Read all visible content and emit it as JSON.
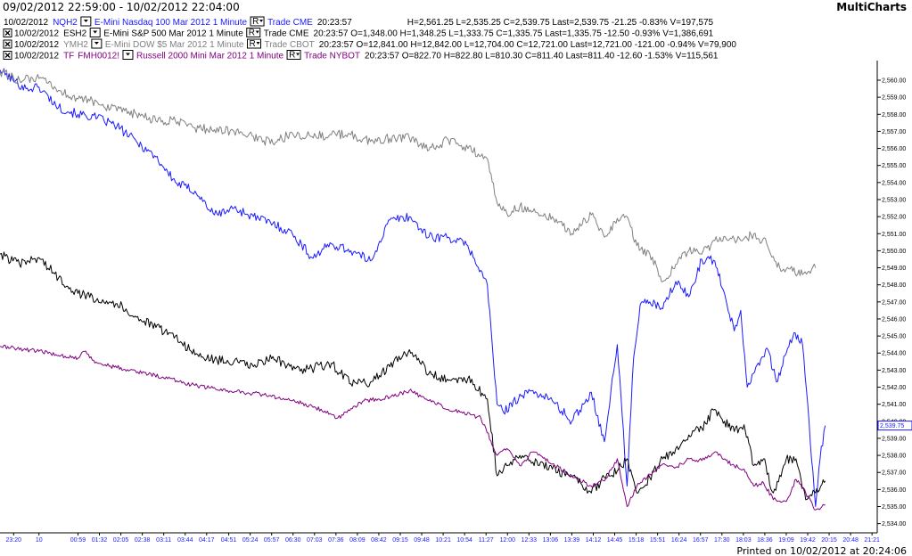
{
  "window": {
    "title": "09/02/2012 22:59:00 - 10/02/2012 22:04:00",
    "app_name": "MultiCharts"
  },
  "footer": {
    "printed": "Printed on 10/02/2012 at 20:24:06"
  },
  "colors": {
    "nasdaq": "#1a1aff",
    "sp500": "#000000",
    "dow": "#808080",
    "russell": "#800080",
    "last_price_box": "#1a1aff"
  },
  "instruments": [
    {
      "id": "nasdaq",
      "color": "#1a1aff",
      "close_icon": false,
      "date": "10/02/2012",
      "symbol": "NQH2",
      "description": "E-Mini Nasdaq 100 Mar 2012",
      "resolution": "1 Minute",
      "data_type": "Trade",
      "exchange": "CME",
      "time": "20:23:57",
      "open": "",
      "high": "H=2,561.25",
      "low": "L=2,535.25",
      "close": "C=2,539.75",
      "last": "Last=2,539.75",
      "change": "-21.25",
      "change_pct": "-0.83%",
      "volume": "V=197,575"
    },
    {
      "id": "sp500",
      "color": "#000000",
      "close_icon": true,
      "date": "10/02/2012",
      "symbol": "ESH2",
      "description": "E-Mini S&P 500 Mar 2012",
      "resolution": "1 Minute",
      "data_type": "Trade",
      "exchange": "CME",
      "time": "20:23:57",
      "open": "O=1,348.00",
      "high": "H=1,348.25",
      "low": "L=1,333.75",
      "close": "C=1,335.75",
      "last": "Last=1,335.75",
      "change": "-12.50",
      "change_pct": "-0.93%",
      "volume": "V=1,386,691"
    },
    {
      "id": "dow",
      "color": "#808080",
      "close_icon": true,
      "date": "10/02/2012",
      "symbol": "YMH2",
      "description": "E-Mini DOW $5 Mar 2012",
      "resolution": "1 Minute",
      "data_type": "Trade",
      "exchange": "CBOT",
      "time": "20:23:57",
      "open": "O=12,841.00",
      "high": "H=12,842.00",
      "low": "L=12,704.00",
      "close": "C=12,721.00",
      "last": "Last=12,721.00",
      "change": "-121.00",
      "change_pct": "-0.94%",
      "volume": "V=79,900"
    },
    {
      "id": "russell",
      "color": "#800080",
      "close_icon": true,
      "date": "10/02/2012",
      "symbol": "TF",
      "alt_symbol": "FMH0012!",
      "description": "Russell 2000 Mini Mar 2012",
      "resolution": "1 Minute",
      "data_type": "Trade",
      "exchange": "NYBOT",
      "time": "20:23:57",
      "open": "O=822.70",
      "high": "H=822.80",
      "low": "L=810.30",
      "close": "C=811.40",
      "last": "Last=811.40",
      "change": "-12.60",
      "change_pct": "-1.53%",
      "volume": "V=115,561"
    }
  ],
  "chart_data": {
    "type": "line",
    "title": "",
    "xlabel": "",
    "ylabel": "",
    "grid": false,
    "legend": "top-left",
    "ylim": [
      2533.8,
      2561.0
    ],
    "y_ticks": [
      "2,560.00",
      "2,559.00",
      "2,558.00",
      "2,557.00",
      "2,556.00",
      "2,555.00",
      "2,554.00",
      "2,553.00",
      "2,552.00",
      "2,551.00",
      "2,550.00",
      "2,549.00",
      "2,548.00",
      "2,547.00",
      "2,546.00",
      "2,545.00",
      "2,544.00",
      "2,543.00",
      "2,542.00",
      "2,541.00",
      "2,540.00",
      "2,539.00",
      "2,538.00",
      "2,537.00",
      "2,536.00",
      "2,535.00",
      "2,534.00"
    ],
    "last_price_label": "2,539.75",
    "last_price_value": 2539.75,
    "x_tick_labels": [
      "23:20",
      "10",
      "00:59",
      "01:32",
      "02:05",
      "02:38",
      "03:11",
      "03:44",
      "04:17",
      "04:51",
      "05:24",
      "05:57",
      "06:30",
      "07:03",
      "07:36",
      "08:09",
      "08:42",
      "09:15",
      "09:48",
      "10:21",
      "10:54",
      "11:27",
      "12:00",
      "12:33",
      "13:06",
      "13:39",
      "14:12",
      "14:45",
      "15:18",
      "15:51",
      "16:24",
      "16:57",
      "17:30",
      "18:03",
      "18:36",
      "19:09",
      "19:42",
      "20:15",
      "20:48",
      "21:21"
    ],
    "x_tick_minutes": [
      21,
      60,
      120,
      153,
      186,
      219,
      252,
      285,
      318,
      352,
      385,
      418,
      451,
      484,
      517,
      550,
      583,
      616,
      649,
      682,
      715,
      748,
      781,
      814,
      847,
      880,
      913,
      946,
      979,
      1012,
      1045,
      1078,
      1111,
      1144,
      1177,
      1210,
      1243,
      1276,
      1309,
      1342
    ],
    "x_range": [
      0,
      1350
    ],
    "series": [
      {
        "name": "E-Mini Nasdaq 100 Mar 2012",
        "color": "#1a1aff",
        "x": [
          0,
          20,
          40,
          60,
          90,
          120,
          150,
          180,
          210,
          240,
          270,
          300,
          330,
          360,
          390,
          420,
          450,
          480,
          510,
          540,
          570,
          600,
          630,
          660,
          690,
          720,
          750,
          765,
          775,
          790,
          820,
          850,
          880,
          910,
          930,
          950,
          965,
          975,
          985,
          1000,
          1020,
          1040,
          1060,
          1080,
          1100,
          1115,
          1130,
          1140,
          1150,
          1165,
          1180,
          1195,
          1210,
          1222,
          1235,
          1245,
          1255,
          1262,
          1270
        ],
        "y": [
          2560.6,
          2560.0,
          2559.5,
          2559.6,
          2558.4,
          2558.0,
          2557.8,
          2557.3,
          2556.4,
          2555.5,
          2554.0,
          2553.5,
          2552.1,
          2552.5,
          2552.0,
          2551.6,
          2551.0,
          2549.6,
          2550.4,
          2550.0,
          2549.4,
          2551.8,
          2552.0,
          2550.8,
          2550.8,
          2550.3,
          2548.0,
          2541.0,
          2540.5,
          2541.2,
          2541.8,
          2541.2,
          2540.0,
          2541.7,
          2538.8,
          2544.5,
          2536.2,
          2543.7,
          2546.8,
          2547.0,
          2546.6,
          2548.2,
          2547.3,
          2549.5,
          2549.4,
          2547.5,
          2545.3,
          2546.5,
          2542.0,
          2543.3,
          2544.3,
          2542.3,
          2544.0,
          2545.2,
          2544.5,
          2540.0,
          2535.0,
          2537.8,
          2539.75
        ]
      },
      {
        "name": "E-Mini S&P 500 Mar 2012",
        "color": "#000000",
        "x": [
          0,
          30,
          60,
          90,
          120,
          150,
          180,
          210,
          240,
          270,
          300,
          330,
          360,
          390,
          420,
          450,
          480,
          510,
          540,
          570,
          600,
          630,
          660,
          690,
          720,
          750,
          765,
          780,
          800,
          820,
          850,
          880,
          910,
          930,
          950,
          965,
          980,
          1000,
          1020,
          1040,
          1060,
          1080,
          1100,
          1115,
          1130,
          1145,
          1160,
          1175,
          1190,
          1210,
          1225,
          1240,
          1255,
          1265,
          1270
        ],
        "y": [
          2549.8,
          2549.2,
          2549.6,
          2548.4,
          2547.5,
          2547.2,
          2546.9,
          2546.1,
          2545.5,
          2545.0,
          2543.9,
          2543.6,
          2543.5,
          2543.2,
          2543.8,
          2543.0,
          2543.1,
          2543.4,
          2542.2,
          2542.3,
          2543.2,
          2544.2,
          2542.8,
          2542.4,
          2542.5,
          2541.3,
          2536.8,
          2537.4,
          2538.0,
          2537.6,
          2537.2,
          2536.8,
          2535.8,
          2536.7,
          2537.1,
          2537.8,
          2535.8,
          2536.7,
          2537.8,
          2538.4,
          2539.2,
          2539.6,
          2540.7,
          2540.0,
          2539.4,
          2539.8,
          2537.4,
          2537.8,
          2535.8,
          2537.8,
          2537.8,
          2535.4,
          2535.8,
          2536.3,
          2536.5
        ]
      },
      {
        "name": "E-Mini DOW $5 Mar 2012",
        "color": "#808080",
        "x": [
          0,
          30,
          60,
          90,
          120,
          150,
          180,
          210,
          240,
          270,
          300,
          330,
          360,
          390,
          420,
          450,
          480,
          510,
          540,
          570,
          600,
          630,
          660,
          690,
          720,
          750,
          765,
          780,
          800,
          820,
          850,
          880,
          910,
          930,
          950,
          965,
          980,
          1000,
          1020,
          1040,
          1060,
          1080,
          1100,
          1120,
          1140,
          1160,
          1180,
          1200,
          1220,
          1235,
          1245,
          1255
        ],
        "y": [
          2560.5,
          2560.0,
          2560.1,
          2559.4,
          2558.9,
          2558.7,
          2558.2,
          2558.0,
          2557.6,
          2557.6,
          2557.2,
          2557.1,
          2557.0,
          2556.7,
          2556.3,
          2556.9,
          2556.7,
          2556.8,
          2556.8,
          2556.4,
          2556.6,
          2556.6,
          2555.9,
          2556.5,
          2556.0,
          2555.4,
          2552.8,
          2552.2,
          2552.6,
          2552.3,
          2552.0,
          2551.0,
          2552.1,
          2550.8,
          2551.9,
          2552.0,
          2550.3,
          2549.8,
          2548.2,
          2549.2,
          2550.0,
          2549.8,
          2550.6,
          2550.6,
          2550.6,
          2551.0,
          2550.4,
          2549.0,
          2548.8,
          2548.6,
          2548.8,
          2549.0
        ]
      },
      {
        "name": "Russell 2000 Mini Mar 2012",
        "color": "#800080",
        "x": [
          0,
          60,
          120,
          130,
          150,
          200,
          250,
          300,
          350,
          400,
          450,
          480,
          500,
          520,
          560,
          600,
          630,
          660,
          700,
          740,
          765,
          780,
          800,
          820,
          850,
          880,
          910,
          930,
          950,
          965,
          980,
          1000,
          1020,
          1040,
          1060,
          1080,
          1100,
          1115,
          1130,
          1145,
          1160,
          1175,
          1190,
          1210,
          1225,
          1240,
          1255,
          1265,
          1270
        ],
        "y": [
          2544.4,
          2544.1,
          2543.7,
          2544.1,
          2543.4,
          2543.0,
          2542.6,
          2542.1,
          2541.8,
          2541.6,
          2541.2,
          2540.9,
          2540.6,
          2540.2,
          2541.2,
          2541.4,
          2541.8,
          2541.2,
          2540.6,
          2540.2,
          2538.0,
          2538.4,
          2537.4,
          2538.2,
          2537.5,
          2536.8,
          2536.2,
          2536.5,
          2537.8,
          2535.0,
          2536.2,
          2536.9,
          2537.5,
          2537.3,
          2537.8,
          2537.7,
          2538.2,
          2537.8,
          2537.4,
          2537.2,
          2536.2,
          2536.4,
          2535.4,
          2535.3,
          2536.6,
          2535.8,
          2534.8,
          2535.0,
          2535.1
        ]
      }
    ]
  }
}
